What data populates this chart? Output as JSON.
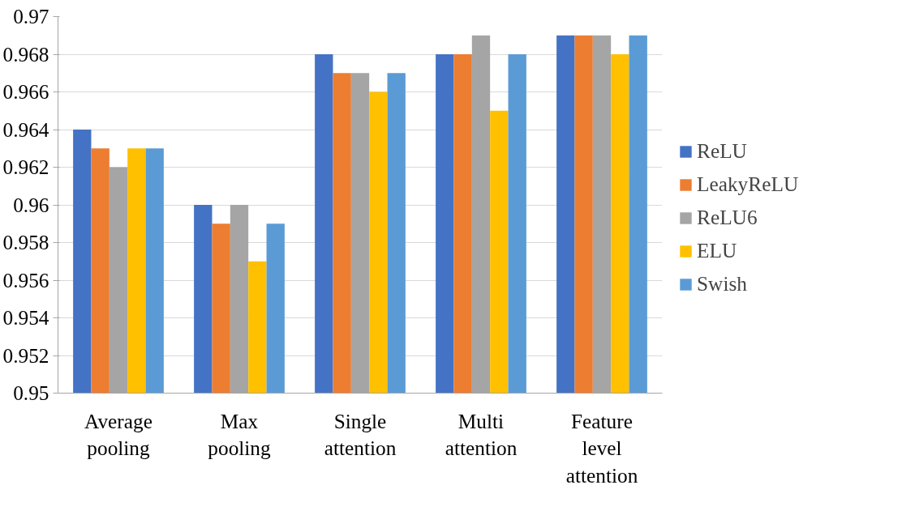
{
  "chart_data": {
    "type": "bar",
    "categories": [
      "Average\npooling",
      "Max\npooling",
      "Single\nattention",
      "Multi\nattention",
      "Feature\nlevel\nattention"
    ],
    "series": [
      {
        "name": "ReLU",
        "color": "#4472c4",
        "values": [
          0.964,
          0.96,
          0.968,
          0.968,
          0.969
        ]
      },
      {
        "name": "LeakyReLU",
        "color": "#ed7d31",
        "values": [
          0.963,
          0.959,
          0.967,
          0.968,
          0.969
        ]
      },
      {
        "name": "ReLU6",
        "color": "#a5a5a5",
        "values": [
          0.962,
          0.96,
          0.967,
          0.969,
          0.969
        ]
      },
      {
        "name": "ELU",
        "color": "#ffc000",
        "values": [
          0.963,
          0.957,
          0.966,
          0.965,
          0.968
        ]
      },
      {
        "name": "Swish",
        "color": "#5b9bd5",
        "values": [
          0.963,
          0.959,
          0.967,
          0.968,
          0.969
        ]
      }
    ],
    "ylim": [
      0.95,
      0.97
    ],
    "yticks": [
      0.95,
      0.952,
      0.954,
      0.956,
      0.958,
      0.96,
      0.962,
      0.964,
      0.966,
      0.968,
      0.97
    ],
    "grid": "y",
    "legend": "right"
  }
}
